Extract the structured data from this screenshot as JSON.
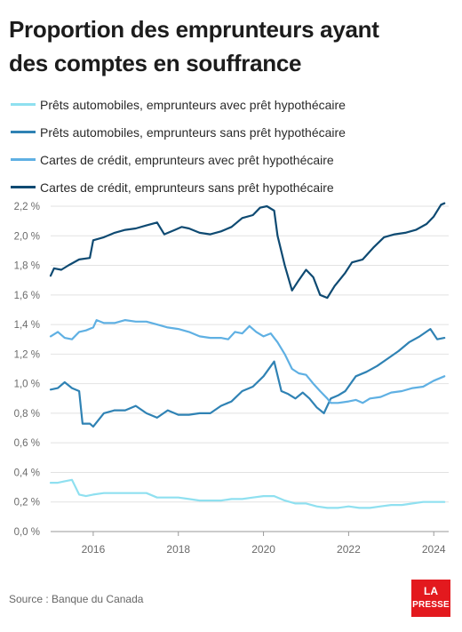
{
  "colors": {
    "series1": "#8fe0f0",
    "series2": "#2f82b4",
    "series3": "#5fb0e3",
    "series4": "#0e4a72",
    "brand": "#e3191e"
  },
  "chart_data": {
    "type": "line",
    "title_line1": "Proportion des emprunteurs ayant",
    "title_line2": "des comptes en souffrance",
    "xlabel": "",
    "ylabel": "",
    "xlim": [
      2015.0,
      2024.35
    ],
    "ylim": [
      0.0,
      2.2
    ],
    "x_ticks": [
      2016,
      2018,
      2020,
      2022,
      2024
    ],
    "y_ticks": [
      "2,2 %",
      "2,0 %",
      "1,8 %",
      "1,6 %",
      "1,4 %",
      "1,2 %",
      "1,0 %",
      "0,8 %",
      "0,6 %",
      "0,4 %",
      "0,2 %",
      "0,0 %"
    ],
    "y_tick_values": [
      2.2,
      2.0,
      1.8,
      1.6,
      1.4,
      1.2,
      1.0,
      0.8,
      0.6,
      0.4,
      0.2,
      0.0
    ],
    "grid": true,
    "legend_placement": "top",
    "series": [
      {
        "name": "Prêts automobiles, emprunteurs avec prêt hypothécaire",
        "x": [
          2015.0,
          2015.17,
          2015.33,
          2015.5,
          2015.67,
          2015.83,
          2016.0,
          2016.25,
          2016.5,
          2016.75,
          2017.0,
          2017.25,
          2017.5,
          2017.75,
          2018.0,
          2018.25,
          2018.5,
          2018.75,
          2019.0,
          2019.25,
          2019.5,
          2019.75,
          2020.0,
          2020.25,
          2020.5,
          2020.75,
          2021.0,
          2021.25,
          2021.5,
          2021.75,
          2022.0,
          2022.25,
          2022.5,
          2022.75,
          2023.0,
          2023.25,
          2023.5,
          2023.75,
          2024.0,
          2024.25
        ],
        "y": [
          0.33,
          0.33,
          0.34,
          0.35,
          0.25,
          0.24,
          0.25,
          0.26,
          0.26,
          0.26,
          0.26,
          0.26,
          0.23,
          0.23,
          0.23,
          0.22,
          0.21,
          0.21,
          0.21,
          0.22,
          0.22,
          0.23,
          0.24,
          0.24,
          0.21,
          0.19,
          0.19,
          0.17,
          0.16,
          0.16,
          0.17,
          0.16,
          0.16,
          0.17,
          0.18,
          0.18,
          0.19,
          0.2,
          0.2,
          0.2
        ]
      },
      {
        "name": "Prêts automobiles, emprunteurs sans prêt hypothécaire",
        "x": [
          2015.0,
          2015.17,
          2015.33,
          2015.5,
          2015.67,
          2015.75,
          2015.92,
          2016.0,
          2016.25,
          2016.5,
          2016.75,
          2017.0,
          2017.25,
          2017.5,
          2017.75,
          2018.0,
          2018.25,
          2018.5,
          2018.75,
          2019.0,
          2019.25,
          2019.5,
          2019.75,
          2020.0,
          2020.25,
          2020.42,
          2020.58,
          2020.75,
          2020.92,
          2021.08,
          2021.25,
          2021.42,
          2021.58,
          2021.75,
          2021.92,
          2022.17,
          2022.42,
          2022.67,
          2022.92,
          2023.17,
          2023.42,
          2023.67,
          2023.92,
          2024.08,
          2024.25
        ],
        "y": [
          0.96,
          0.97,
          1.01,
          0.97,
          0.95,
          0.73,
          0.73,
          0.71,
          0.8,
          0.82,
          0.82,
          0.85,
          0.8,
          0.77,
          0.82,
          0.79,
          0.79,
          0.8,
          0.8,
          0.85,
          0.88,
          0.95,
          0.98,
          1.05,
          1.15,
          0.95,
          0.93,
          0.9,
          0.94,
          0.9,
          0.84,
          0.8,
          0.9,
          0.92,
          0.95,
          1.05,
          1.08,
          1.12,
          1.17,
          1.22,
          1.28,
          1.32,
          1.37,
          1.3,
          1.31
        ]
      },
      {
        "name": "Cartes de crédit, emprunteurs avec prêt hypothécaire",
        "x": [
          2015.0,
          2015.17,
          2015.33,
          2015.5,
          2015.67,
          2015.83,
          2016.0,
          2016.08,
          2016.25,
          2016.5,
          2016.75,
          2017.0,
          2017.25,
          2017.5,
          2017.75,
          2018.0,
          2018.25,
          2018.5,
          2018.75,
          2019.0,
          2019.17,
          2019.33,
          2019.5,
          2019.67,
          2019.83,
          2020.0,
          2020.17,
          2020.33,
          2020.5,
          2020.67,
          2020.83,
          2021.0,
          2021.17,
          2021.33,
          2021.5,
          2021.58,
          2021.75,
          2022.0,
          2022.17,
          2022.33,
          2022.5,
          2022.75,
          2023.0,
          2023.25,
          2023.5,
          2023.75,
          2024.0,
          2024.25
        ],
        "y": [
          1.32,
          1.35,
          1.31,
          1.3,
          1.35,
          1.36,
          1.38,
          1.43,
          1.41,
          1.41,
          1.43,
          1.42,
          1.42,
          1.4,
          1.38,
          1.37,
          1.35,
          1.32,
          1.31,
          1.31,
          1.3,
          1.35,
          1.34,
          1.39,
          1.35,
          1.32,
          1.34,
          1.28,
          1.2,
          1.1,
          1.07,
          1.06,
          1.0,
          0.95,
          0.9,
          0.87,
          0.87,
          0.88,
          0.89,
          0.87,
          0.9,
          0.91,
          0.94,
          0.95,
          0.97,
          0.98,
          1.02,
          1.05
        ]
      },
      {
        "name": "Cartes de crédit, emprunteurs sans prêt hypothécaire",
        "x": [
          2015.0,
          2015.08,
          2015.25,
          2015.42,
          2015.67,
          2015.92,
          2016.0,
          2016.25,
          2016.5,
          2016.75,
          2017.0,
          2017.25,
          2017.5,
          2017.67,
          2017.92,
          2018.08,
          2018.25,
          2018.5,
          2018.75,
          2019.0,
          2019.25,
          2019.5,
          2019.75,
          2019.92,
          2020.08,
          2020.25,
          2020.33,
          2020.5,
          2020.67,
          2020.83,
          2021.0,
          2021.17,
          2021.33,
          2021.5,
          2021.67,
          2021.92,
          2022.08,
          2022.33,
          2022.58,
          2022.83,
          2023.08,
          2023.33,
          2023.58,
          2023.83,
          2024.0,
          2024.17,
          2024.25
        ],
        "y": [
          1.73,
          1.78,
          1.77,
          1.8,
          1.84,
          1.85,
          1.97,
          1.99,
          2.02,
          2.04,
          2.05,
          2.07,
          2.09,
          2.01,
          2.04,
          2.06,
          2.05,
          2.02,
          2.01,
          2.03,
          2.06,
          2.12,
          2.14,
          2.19,
          2.2,
          2.17,
          2.0,
          1.8,
          1.63,
          1.7,
          1.77,
          1.72,
          1.6,
          1.58,
          1.66,
          1.75,
          1.82,
          1.84,
          1.92,
          1.99,
          2.01,
          2.02,
          2.04,
          2.08,
          2.13,
          2.21,
          2.22
        ]
      }
    ]
  },
  "source": "Source : Banque du Canada",
  "logo": {
    "line1": "LA",
    "line2": "PRESSE"
  }
}
